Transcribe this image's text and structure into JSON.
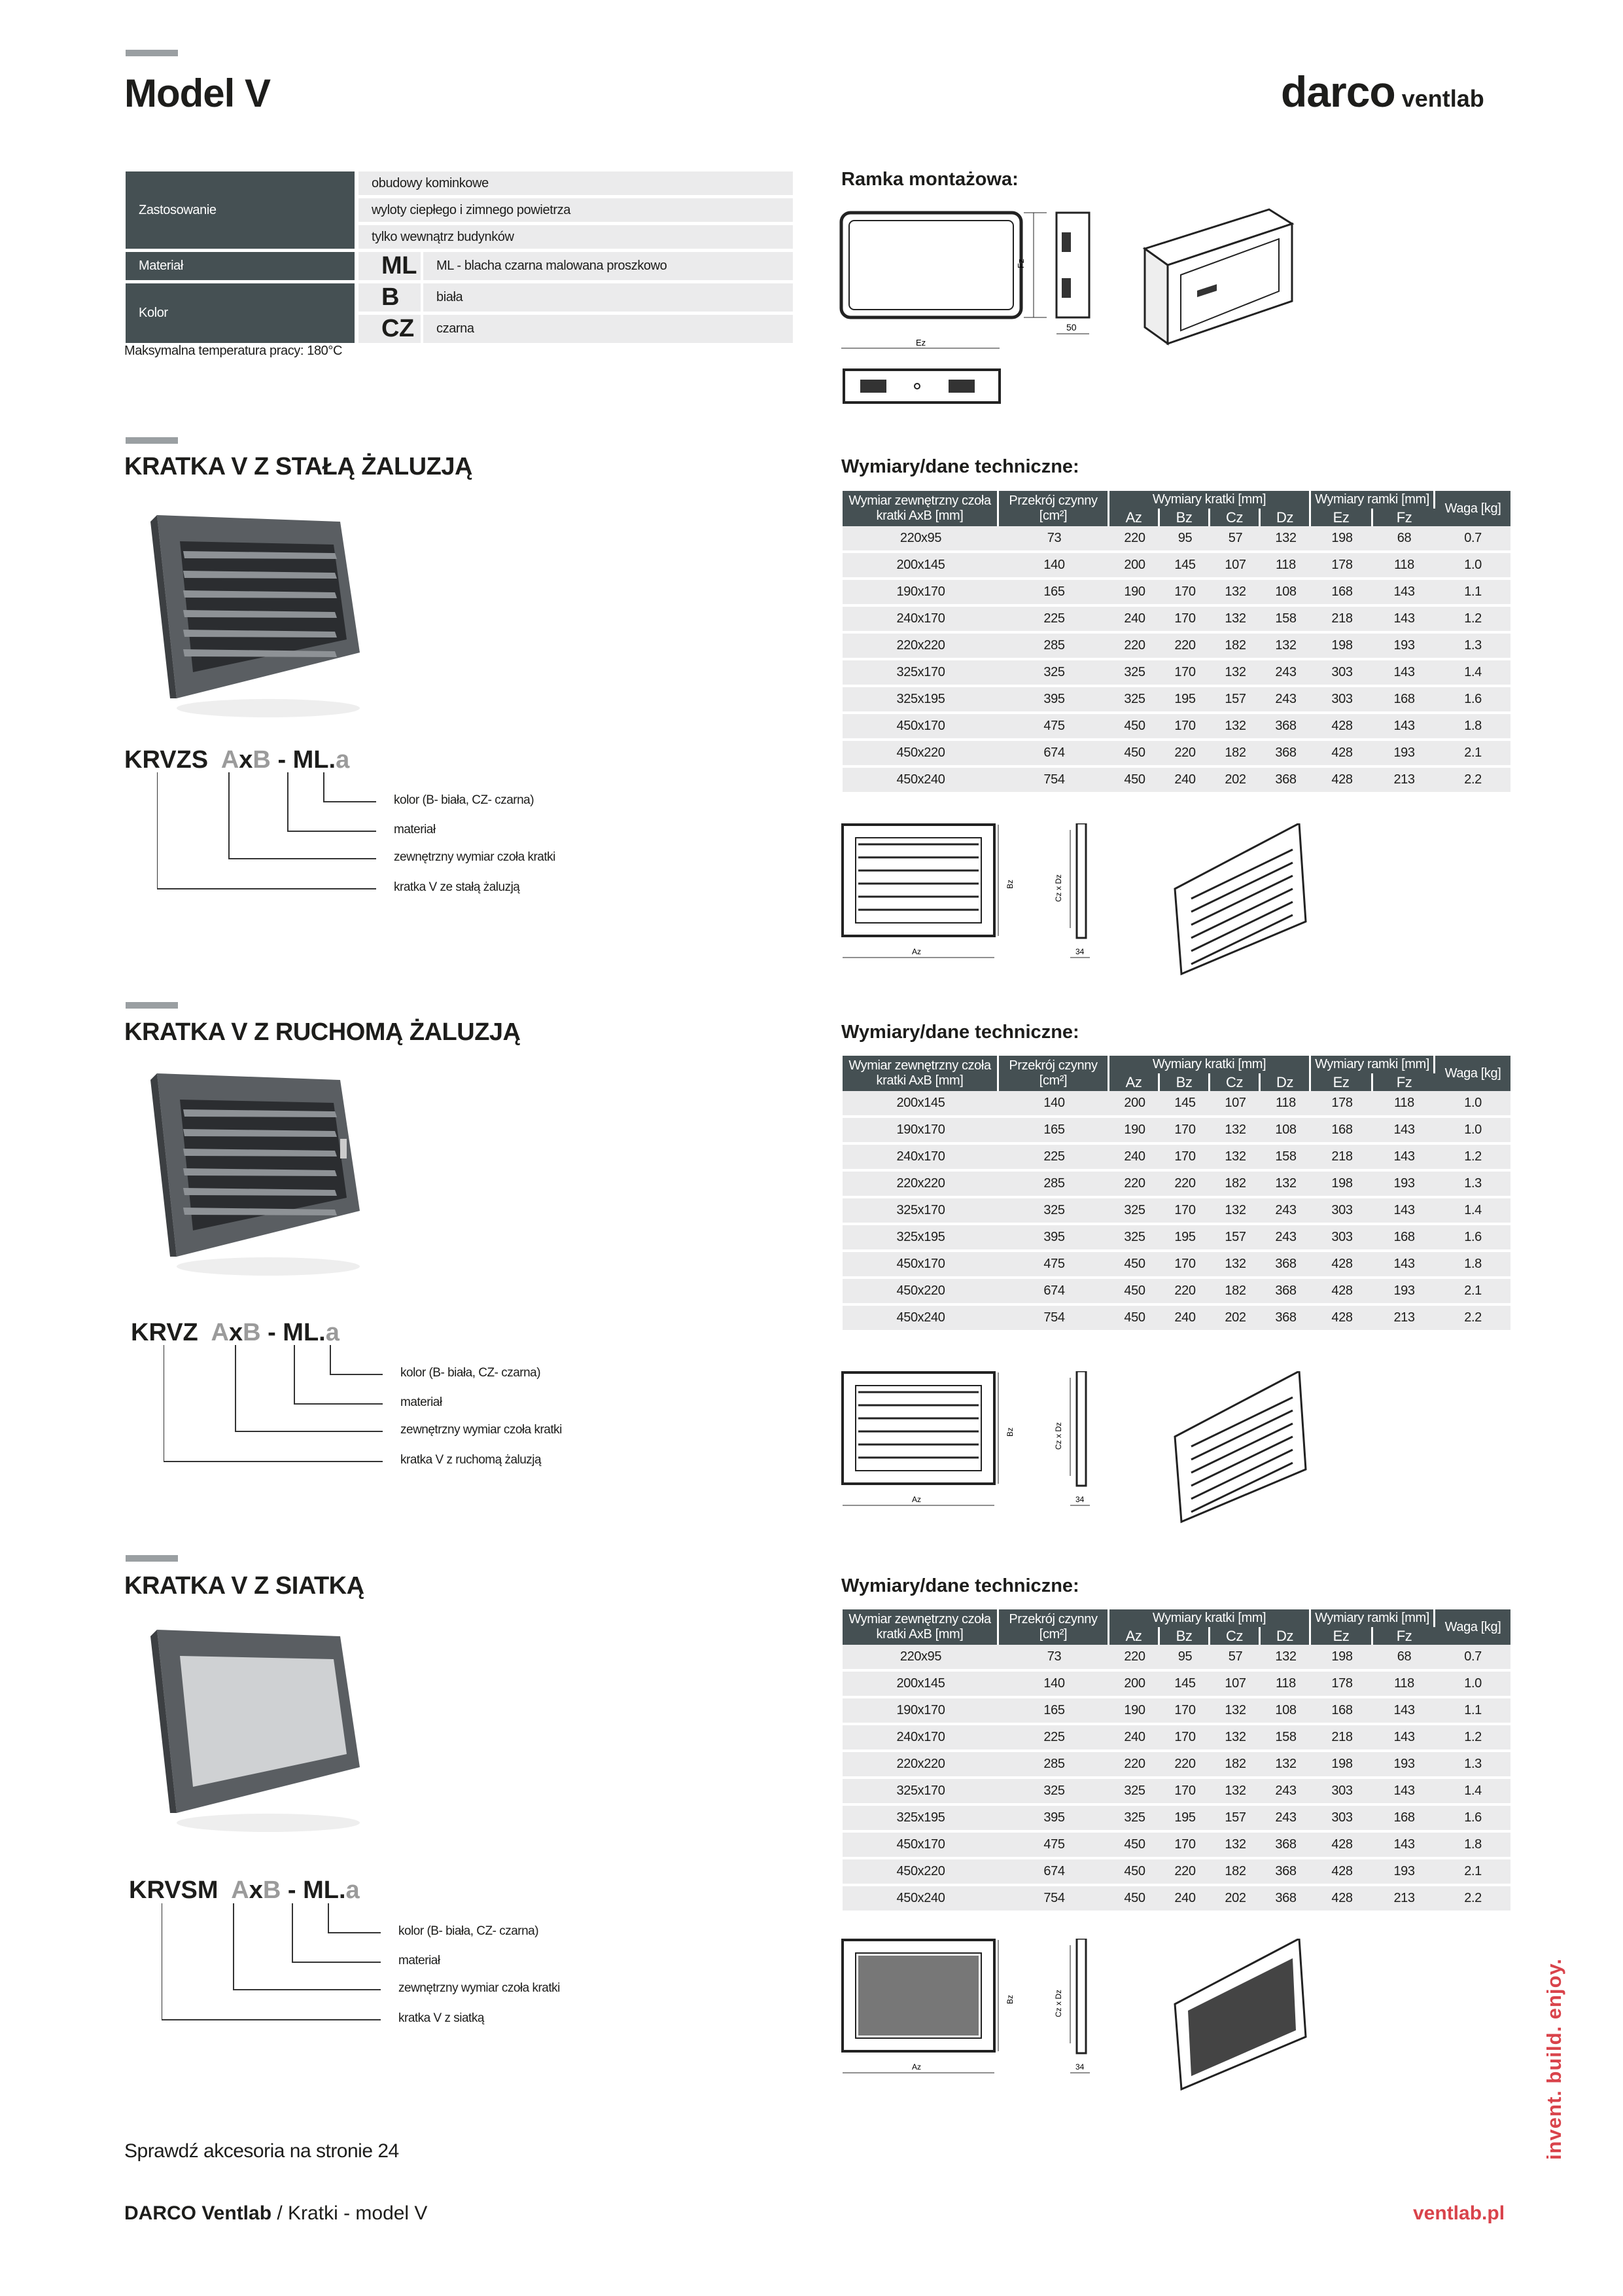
{
  "header": {
    "title": "Model V",
    "logo_main": "darco",
    "logo_sub": "ventlab"
  },
  "specs": {
    "zastosowanie_label": "Zastosowanie",
    "zastosowanie": [
      "obudowy kominkowe",
      "wyloty ciepłego i zimnego powietrza",
      "tylko wewnątrz budynków"
    ],
    "material_label": "Materiał",
    "material_code": "ML",
    "material_desc": "ML - blacha czarna malowana proszkowo",
    "kolor_label": "Kolor",
    "kolor": [
      {
        "code": "B",
        "desc": "biała"
      },
      {
        "code": "CZ",
        "desc": "czarna"
      }
    ],
    "max_temp": "Maksymalna temperatura pracy: 180°C"
  },
  "frame": {
    "title": "Ramka montażowa:",
    "dim_fz": "Fz",
    "dim_ez": "Ez",
    "dim_depth": "50"
  },
  "table_header": {
    "col1": "Wymiar zewnętrzny czoła kratki AxB [mm]",
    "col2": "Przekrój czynny [cm²]",
    "group1": "Wymiary kratki [mm]",
    "group2": "Wymiary ramki [mm]",
    "col_waga": "Waga [kg]",
    "sub": [
      "Az",
      "Bz",
      "Cz",
      "Dz",
      "Ez",
      "Fz"
    ]
  },
  "sections": [
    {
      "title": "KRATKA V Z STAŁĄ ŻALUZJĄ",
      "table_title": "Wymiary/dane techniczne:",
      "code": {
        "prefix": "KRVZS",
        "a": "A",
        "x": "x",
        "b": "B",
        "mid": "- ML.",
        "suffix": "a"
      },
      "legend": [
        "kolor (B- biała, CZ- czarna)",
        "materiał",
        "zewnętrzny wymiar czoła kratki",
        "kratka V ze stałą żaluzją"
      ],
      "drawing_labels": {
        "az": "Az",
        "bz": "Bz",
        "czdz": "Cz x Dz",
        "depth": "34"
      },
      "rows": [
        [
          "220x95",
          "73",
          "220",
          "95",
          "57",
          "132",
          "198",
          "68",
          "0.7"
        ],
        [
          "200x145",
          "140",
          "200",
          "145",
          "107",
          "118",
          "178",
          "118",
          "1.0"
        ],
        [
          "190x170",
          "165",
          "190",
          "170",
          "132",
          "108",
          "168",
          "143",
          "1.1"
        ],
        [
          "240x170",
          "225",
          "240",
          "170",
          "132",
          "158",
          "218",
          "143",
          "1.2"
        ],
        [
          "220x220",
          "285",
          "220",
          "220",
          "182",
          "132",
          "198",
          "193",
          "1.3"
        ],
        [
          "325x170",
          "325",
          "325",
          "170",
          "132",
          "243",
          "303",
          "143",
          "1.4"
        ],
        [
          "325x195",
          "395",
          "325",
          "195",
          "157",
          "243",
          "303",
          "168",
          "1.6"
        ],
        [
          "450x170",
          "475",
          "450",
          "170",
          "132",
          "368",
          "428",
          "143",
          "1.8"
        ],
        [
          "450x220",
          "674",
          "450",
          "220",
          "182",
          "368",
          "428",
          "193",
          "2.1"
        ],
        [
          "450x240",
          "754",
          "450",
          "240",
          "202",
          "368",
          "428",
          "213",
          "2.2"
        ]
      ]
    },
    {
      "title": "KRATKA V Z RUCHOMĄ ŻALUZJĄ",
      "table_title": "Wymiary/dane techniczne:",
      "code": {
        "prefix": "KRVZ",
        "a": "A",
        "x": "x",
        "b": "B",
        "mid": "- ML.",
        "suffix": "a"
      },
      "legend": [
        "kolor (B- biała, CZ- czarna)",
        "materiał",
        "zewnętrzny wymiar czoła kratki",
        "kratka V z ruchomą żaluzją"
      ],
      "drawing_labels": {
        "az": "Az",
        "bz": "Bz",
        "czdz": "Cz x Dz",
        "depth": "34"
      },
      "rows": [
        [
          "200x145",
          "140",
          "200",
          "145",
          "107",
          "118",
          "178",
          "118",
          "1.0"
        ],
        [
          "190x170",
          "165",
          "190",
          "170",
          "132",
          "108",
          "168",
          "143",
          "1.0"
        ],
        [
          "240x170",
          "225",
          "240",
          "170",
          "132",
          "158",
          "218",
          "143",
          "1.2"
        ],
        [
          "220x220",
          "285",
          "220",
          "220",
          "182",
          "132",
          "198",
          "193",
          "1.3"
        ],
        [
          "325x170",
          "325",
          "325",
          "170",
          "132",
          "243",
          "303",
          "143",
          "1.4"
        ],
        [
          "325x195",
          "395",
          "325",
          "195",
          "157",
          "243",
          "303",
          "168",
          "1.6"
        ],
        [
          "450x170",
          "475",
          "450",
          "170",
          "132",
          "368",
          "428",
          "143",
          "1.8"
        ],
        [
          "450x220",
          "674",
          "450",
          "220",
          "182",
          "368",
          "428",
          "193",
          "2.1"
        ],
        [
          "450x240",
          "754",
          "450",
          "240",
          "202",
          "368",
          "428",
          "213",
          "2.2"
        ]
      ]
    },
    {
      "title": "KRATKA V Z SIATKĄ",
      "table_title": "Wymiary/dane techniczne:",
      "code": {
        "prefix": "KRVSM",
        "a": "A",
        "x": "x",
        "b": "B",
        "mid": "- ML.",
        "suffix": "a"
      },
      "legend": [
        "kolor (B- biała, CZ- czarna)",
        "materiał",
        "zewnętrzny wymiar czoła kratki",
        "kratka V z siatką"
      ],
      "drawing_labels": {
        "az": "Az",
        "bz": "Bz",
        "czdz": "Cz x Dz",
        "depth": "34"
      },
      "rows": [
        [
          "220x95",
          "73",
          "220",
          "95",
          "57",
          "132",
          "198",
          "68",
          "0.7"
        ],
        [
          "200x145",
          "140",
          "200",
          "145",
          "107",
          "118",
          "178",
          "118",
          "1.0"
        ],
        [
          "190x170",
          "165",
          "190",
          "170",
          "132",
          "108",
          "168",
          "143",
          "1.1"
        ],
        [
          "240x170",
          "225",
          "240",
          "170",
          "132",
          "158",
          "218",
          "143",
          "1.2"
        ],
        [
          "220x220",
          "285",
          "220",
          "220",
          "182",
          "132",
          "198",
          "193",
          "1.3"
        ],
        [
          "325x170",
          "325",
          "325",
          "170",
          "132",
          "243",
          "303",
          "143",
          "1.4"
        ],
        [
          "325x195",
          "395",
          "325",
          "195",
          "157",
          "243",
          "303",
          "168",
          "1.6"
        ],
        [
          "450x170",
          "475",
          "450",
          "170",
          "132",
          "368",
          "428",
          "143",
          "1.8"
        ],
        [
          "450x220",
          "674",
          "450",
          "220",
          "182",
          "368",
          "428",
          "193",
          "2.1"
        ],
        [
          "450x240",
          "754",
          "450",
          "240",
          "202",
          "368",
          "428",
          "213",
          "2.2"
        ]
      ]
    }
  ],
  "accessories_note": "Sprawdź akcesoria na stronie 24",
  "footer": {
    "brand": "DARCO Ventlab",
    "path": "/ Kratki - model V",
    "url": "ventlab.pl",
    "tagline": "invent. build. enjoy."
  },
  "colors": {
    "header_dark": "#455053",
    "row_light": "#ebebec",
    "accent_red": "#d9434b",
    "code_gray": "#9b9b9b"
  }
}
